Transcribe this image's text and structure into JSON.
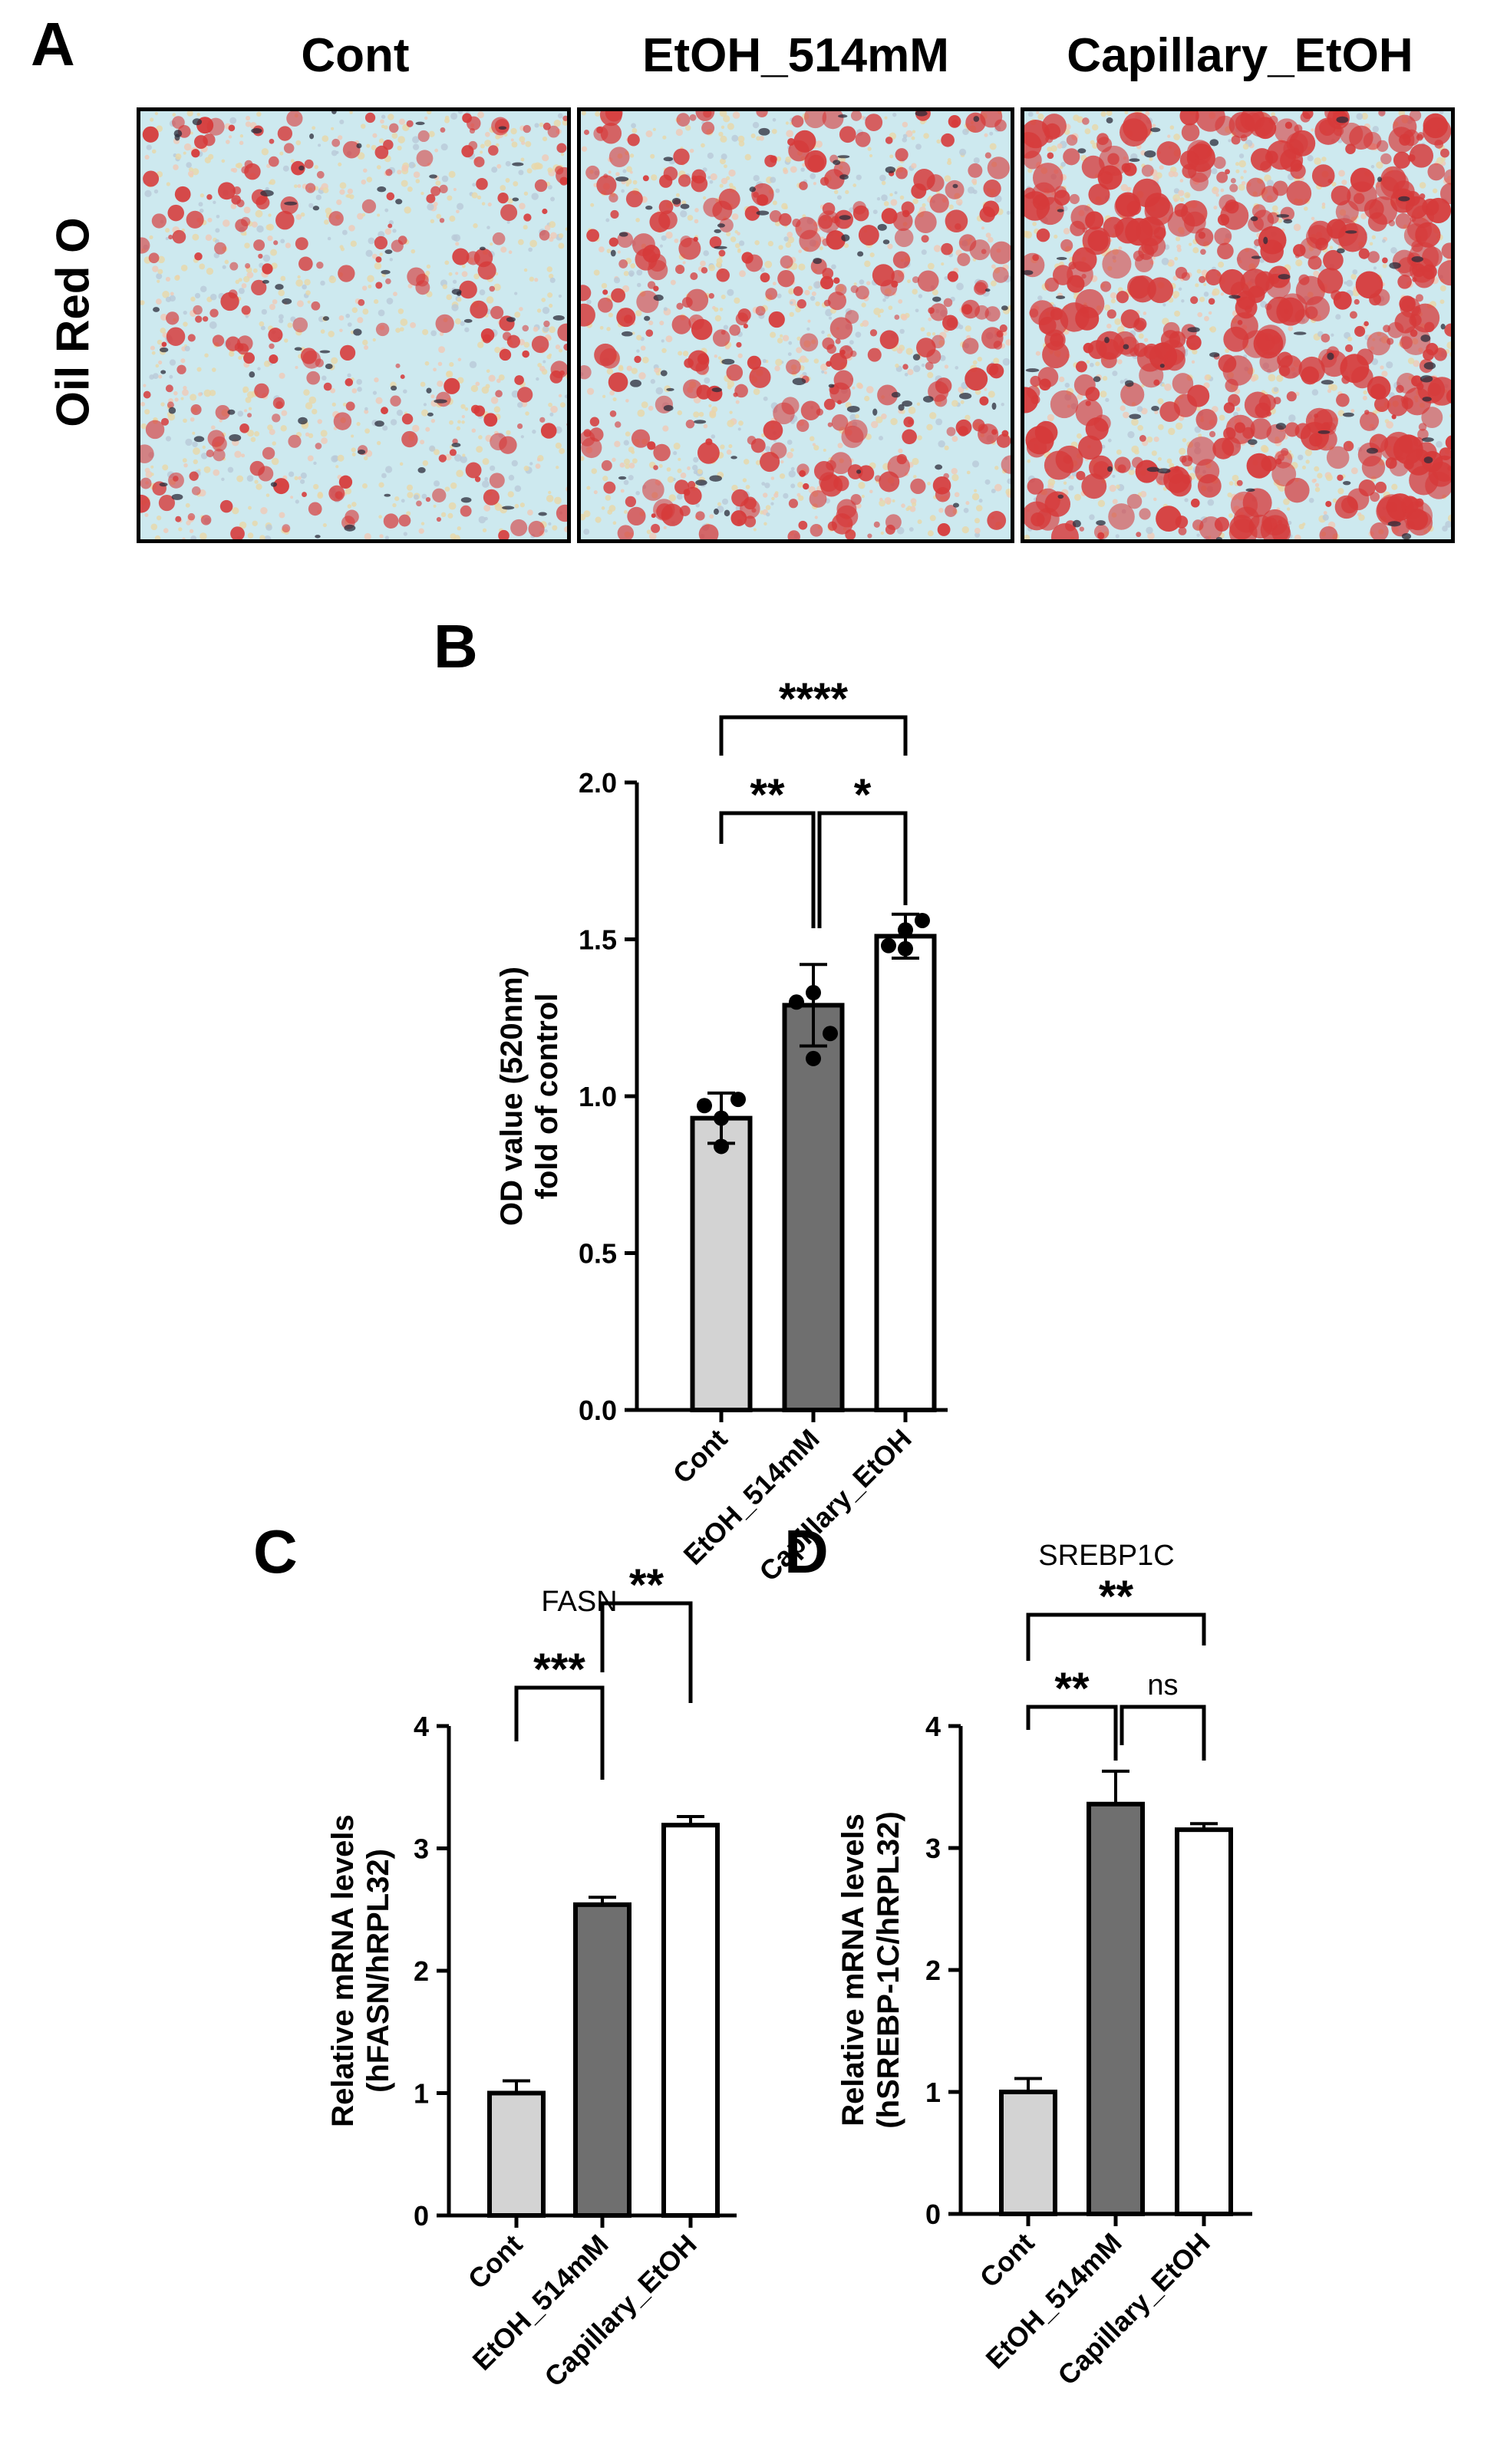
{
  "panel_a": {
    "letter": "A",
    "row_label": "Oil Red O",
    "images": [
      {
        "title": "Cont",
        "stain_density": 0.25
      },
      {
        "title": "EtOH_514mM",
        "stain_density": 0.45
      },
      {
        "title": "Capillary_EtOH",
        "stain_density": 0.8
      }
    ],
    "colors": {
      "background": "#cde9ef",
      "lipid": "#d63a3a",
      "dark": "#2b2b3a"
    }
  },
  "colors": {
    "cont": "#d3d3d3",
    "etoh": "#6f6f6f",
    "capillary": "#ffffff"
  },
  "chart_data": [
    {
      "id": "B",
      "letter": "B",
      "type": "bar",
      "title": "",
      "categories": [
        "Cont",
        "EtOH_514mM",
        "Capillary_EtOH"
      ],
      "values": [
        0.93,
        1.29,
        1.51
      ],
      "errors": [
        0.08,
        0.13,
        0.07
      ],
      "points": [
        [
          0.97,
          0.99,
          0.93,
          0.84
        ],
        [
          1.3,
          1.2,
          1.33,
          1.12
        ],
        [
          1.48,
          1.56,
          1.47,
          1.53
        ]
      ],
      "ylabel": "OD value (520nm)",
      "ylabel2": "fold of control",
      "ylim": [
        0,
        2.0
      ],
      "yticks": [
        "0.0",
        "0.5",
        "1.0",
        "1.5",
        "2.0"
      ],
      "significance": [
        {
          "from": 0,
          "to": 2,
          "label": "****"
        },
        {
          "from": 0,
          "to": 1,
          "label": "**"
        },
        {
          "from": 1,
          "to": 2,
          "label": "*"
        }
      ]
    },
    {
      "id": "C",
      "letter": "C",
      "type": "bar",
      "title": "FASN",
      "categories": [
        "Cont",
        "EtOH_514mM",
        "Capillary_EtOH"
      ],
      "values": [
        1.0,
        2.54,
        3.19
      ],
      "errors": [
        0.1,
        0.06,
        0.07
      ],
      "ylabel": "Relative mRNA levels",
      "ylabel2": "(hFASN/hRPL32)",
      "ylim": [
        0,
        4
      ],
      "yticks": [
        "0",
        "1",
        "2",
        "3",
        "4"
      ],
      "significance": [
        {
          "from": 0,
          "to": 1,
          "label": "***"
        },
        {
          "from": 1,
          "to": 2,
          "label": "**"
        }
      ]
    },
    {
      "id": "D",
      "letter": "D",
      "type": "bar",
      "title": "SREBP1C",
      "categories": [
        "Cont",
        "EtOH_514mM",
        "Capillary_EtOH"
      ],
      "values": [
        1.0,
        3.36,
        3.15
      ],
      "errors": [
        0.11,
        0.27,
        0.05
      ],
      "ylabel": "Relative mRNA levels",
      "ylabel2": "(hSREBP-1C/hRPL32)",
      "ylim": [
        0,
        4
      ],
      "yticks": [
        "0",
        "1",
        "2",
        "3",
        "4"
      ],
      "significance": [
        {
          "from": 0,
          "to": 2,
          "label": "**"
        },
        {
          "from": 0,
          "to": 1,
          "label": "**"
        },
        {
          "from": 1,
          "to": 2,
          "label": "ns"
        }
      ]
    }
  ]
}
